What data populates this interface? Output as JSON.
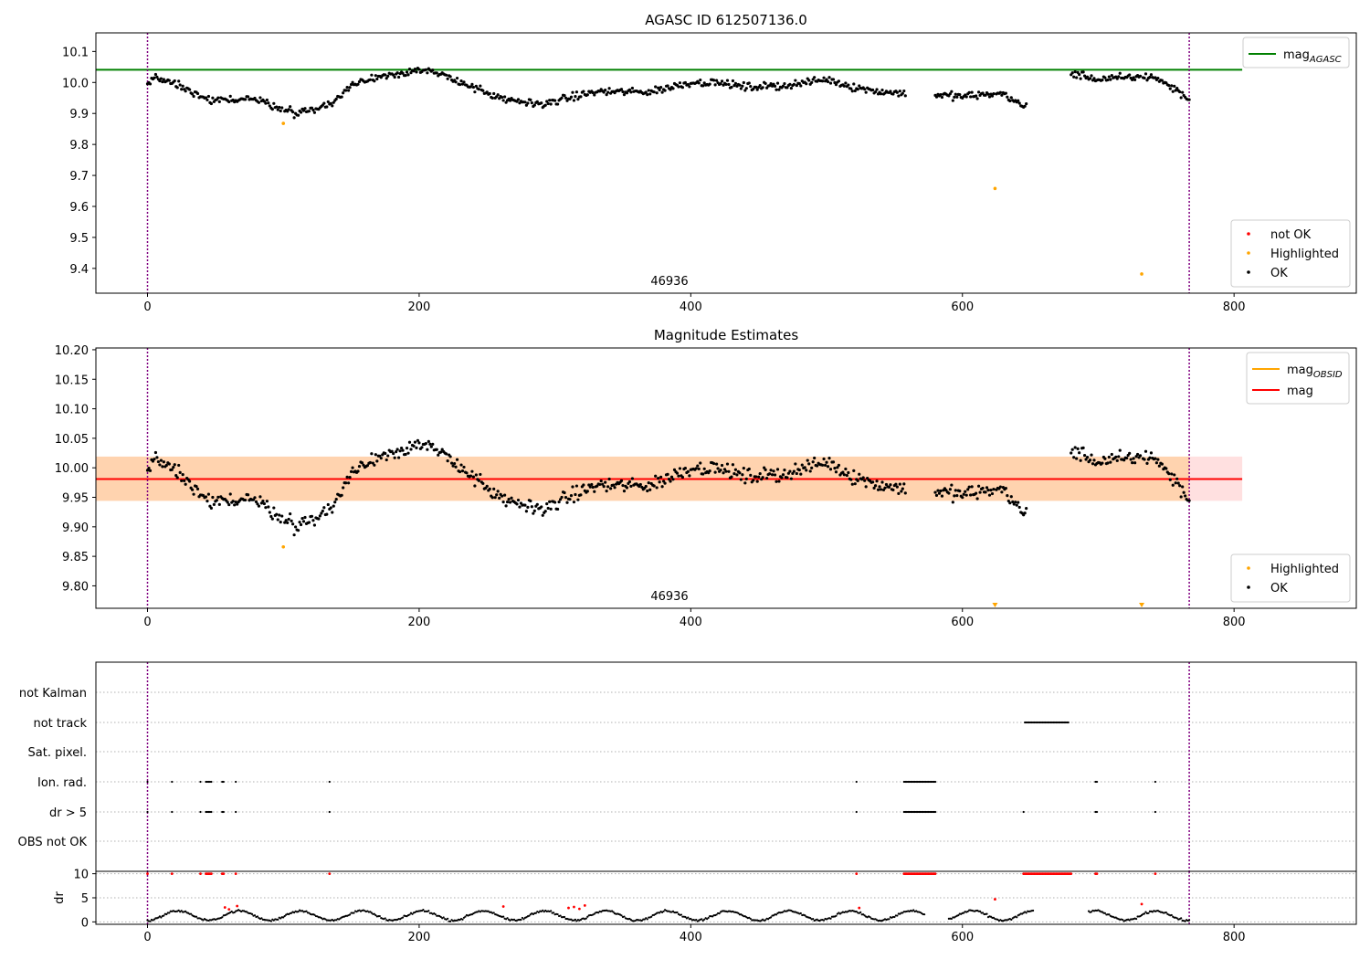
{
  "chart_data": [
    {
      "type": "scatter",
      "title": "AGASC ID 612507136.0",
      "xlabel": "",
      "ylabel": "",
      "xlim": [
        -38,
        890
      ],
      "ylim": [
        9.32,
        10.16
      ],
      "xticks": [
        0,
        200,
        400,
        600,
        800
      ],
      "yticks": [
        9.4,
        9.5,
        9.6,
        9.7,
        9.8,
        9.9,
        10.0,
        10.1
      ],
      "xtick_labels": [
        "0",
        "200",
        "400",
        "600",
        "800"
      ],
      "ytick_labels": [
        "9.4",
        "9.5",
        "9.6",
        "9.7",
        "9.8",
        "9.9",
        "10.0",
        "10.1"
      ],
      "annotation": "46936",
      "annotation_x": 385,
      "vlines": [
        0,
        767
      ],
      "hlines": [
        {
          "name": "mag",
          "subscript": "AGASC",
          "y": 10.041,
          "xmax": 806,
          "color": "#008000"
        }
      ],
      "legend_lines": [
        {
          "name": "mag",
          "subscript": "AGASC",
          "color": "#008000"
        }
      ],
      "legend_scatter": [
        {
          "name": "not OK",
          "color": "#ff0000"
        },
        {
          "name": "Highlighted",
          "color": "#ffa500"
        },
        {
          "name": "OK",
          "color": "#000000"
        }
      ],
      "highlighted": [
        [
          100,
          9.868
        ],
        [
          624,
          9.658
        ],
        [
          732,
          9.382
        ]
      ],
      "grid": false
    },
    {
      "type": "scatter",
      "title": "Magnitude Estimates",
      "xlabel": "",
      "ylabel": "",
      "xlim": [
        -38,
        890
      ],
      "ylim": [
        9.762,
        10.203
      ],
      "xticks": [
        0,
        200,
        400,
        600,
        800
      ],
      "yticks": [
        9.8,
        9.85,
        9.9,
        9.95,
        10.0,
        10.05,
        10.1,
        10.15,
        10.2
      ],
      "xtick_labels": [
        "0",
        "200",
        "400",
        "600",
        "800"
      ],
      "ytick_labels": [
        "9.80",
        "9.85",
        "9.90",
        "9.95",
        "10.00",
        "10.05",
        "10.10",
        "10.15",
        "10.20"
      ],
      "annotation": "46936",
      "annotation_x": 385,
      "vlines": [
        0,
        767
      ],
      "band_obsid": {
        "y0": 9.944,
        "y1": 10.019,
        "x0": -38,
        "x1": 767
      },
      "band_mag": {
        "y0": 9.944,
        "y1": 10.019,
        "x0": -38,
        "x1": 806
      },
      "hlines": [
        {
          "name": "mag",
          "y": 9.981,
          "xmax": 806,
          "color": "#ff0000"
        }
      ],
      "legend_lines": [
        {
          "name": "mag",
          "subscript": "OBSID",
          "color": "#ffa500"
        },
        {
          "name": "mag",
          "subscript": "",
          "color": "#ff0000"
        }
      ],
      "legend_scatter": [
        {
          "name": "Highlighted",
          "color": "#ffa500"
        },
        {
          "name": "OK",
          "color": "#000000"
        }
      ],
      "highlighted": [
        [
          100,
          9.866
        ]
      ],
      "off_axis_markers": [
        624,
        732
      ],
      "grid": false
    },
    {
      "type": "scatter",
      "title": "",
      "xlim": [
        -38,
        890
      ],
      "xticks": [
        0,
        200,
        400,
        600,
        800
      ],
      "xtick_labels": [
        "0",
        "200",
        "400",
        "600",
        "800"
      ],
      "categories": [
        "not Kalman",
        "not track",
        "Sat. pixel.",
        "Ion. rad.",
        "dr > 5",
        "OBS not OK"
      ],
      "vlines": [
        0,
        767
      ],
      "flags": {
        "not Kalman": [],
        "not track": [
          [
            646,
            678
          ]
        ],
        "Sat. pixel.": [],
        "Ion. rad.": [
          [
            0,
            0
          ],
          [
            18,
            18
          ],
          [
            39,
            39
          ],
          [
            43,
            47
          ],
          [
            55,
            56
          ],
          [
            65,
            65
          ],
          [
            134,
            134
          ],
          [
            522,
            522
          ],
          [
            557,
            580
          ],
          [
            698,
            699
          ],
          [
            742,
            742
          ]
        ],
        "dr > 5": [
          [
            0,
            0
          ],
          [
            18,
            18
          ],
          [
            39,
            39
          ],
          [
            43,
            47
          ],
          [
            55,
            56
          ],
          [
            65,
            65
          ],
          [
            134,
            134
          ],
          [
            522,
            522
          ],
          [
            557,
            580
          ],
          [
            645,
            645
          ],
          [
            698,
            699
          ],
          [
            742,
            742
          ]
        ],
        "OBS not OK": []
      },
      "grid": true
    },
    {
      "type": "scatter",
      "title": "",
      "xlabel": "",
      "ylabel": "dr",
      "xlim": [
        -38,
        890
      ],
      "ylim": [
        -0.5,
        10.5
      ],
      "xticks": [
        0,
        200,
        400,
        600,
        800
      ],
      "yticks": [
        0,
        5,
        10
      ],
      "xtick_labels": [
        "0",
        "200",
        "400",
        "600",
        "800"
      ],
      "ytick_labels": [
        "0",
        "5",
        "10"
      ],
      "clip_value": 10,
      "red_at_top_ranges": [
        [
          0,
          0
        ],
        [
          18,
          18
        ],
        [
          39,
          39
        ],
        [
          43,
          47
        ],
        [
          55,
          56
        ],
        [
          65,
          65
        ],
        [
          134,
          134
        ],
        [
          522,
          522
        ],
        [
          557,
          580
        ],
        [
          645,
          680
        ],
        [
          698,
          699
        ],
        [
          742,
          742
        ]
      ],
      "red_points": [
        [
          57,
          3.0
        ],
        [
          60,
          2.6
        ],
        [
          66,
          3.3
        ],
        [
          262,
          3.2
        ],
        [
          310,
          2.9
        ],
        [
          314,
          3.1
        ],
        [
          318,
          2.7
        ],
        [
          322,
          3.4
        ],
        [
          524,
          2.9
        ],
        [
          624,
          4.7
        ],
        [
          732,
          3.7
        ]
      ],
      "gaps": [
        [
          573,
          589
        ],
        [
          653,
          692
        ]
      ],
      "grid": true
    }
  ]
}
